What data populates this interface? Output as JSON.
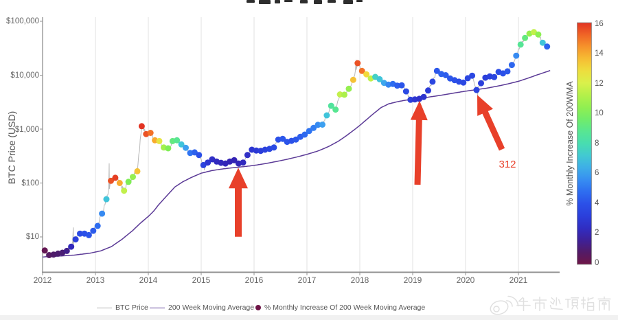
{
  "cropped_title_visible": true,
  "y_axis": {
    "label": "BTC Price (USD)",
    "ticks": [
      "$10",
      "$100",
      "$1,000",
      "$10,000",
      "$100,000"
    ],
    "tick_values": [
      10,
      100,
      1000,
      10000,
      100000
    ]
  },
  "x_axis": {
    "ticks": [
      "2012",
      "2013",
      "2014",
      "2015",
      "2016",
      "2017",
      "2018",
      "2019",
      "2020",
      "2021"
    ]
  },
  "colorbar": {
    "label": "% Monthly Increase Of 200WMA",
    "min": 0,
    "max": 16,
    "ticks": [
      "0",
      "2",
      "4",
      "6",
      "8",
      "10",
      "12",
      "14",
      "16"
    ]
  },
  "legend": {
    "items": [
      {
        "label": "BTC Price",
        "swatch": "line",
        "color": "#b0b0b0"
      },
      {
        "label": "200 Week Moving Average",
        "swatch": "line",
        "color": "#5b3a96"
      },
      {
        "label": "% Monthly Increase Of 200 Week Moving Average",
        "swatch": "dot",
        "color": "#6e1547"
      }
    ]
  },
  "annotations": {
    "arrow_label": "312",
    "arrow_color": "#e8402a",
    "arrows": [
      {
        "tip": [
          2015.701,
          192
        ],
        "tail": [
          2015.701,
          10.1
        ],
        "shaft": 10,
        "head_len": 30,
        "head_w": 28
      },
      {
        "tip": [
          2019.13,
          3350
        ],
        "tail": [
          2019.091,
          93
        ],
        "shaft": 9,
        "head_len": 28,
        "head_w": 25
      },
      {
        "tip": [
          2020.221,
          4300
        ],
        "tail": [
          2020.688,
          420
        ],
        "shaft": 9,
        "head_len": 28,
        "head_w": 25
      }
    ]
  },
  "watermark": {
    "text": "牛市逃顶指南",
    "icon": "weibo-logo"
  },
  "chart_data": {
    "type": "scatter",
    "yscale": "log",
    "xlim": [
      2012.0,
      2021.78
    ],
    "ylim": [
      3.5,
      120000
    ],
    "ylabel": "BTC Price (USD)",
    "xlabel": "",
    "series_note": "monthly BTC price dots (mid-month) colored by monthly % increase of 200-week moving average",
    "x_start": 2012.0,
    "x_step": 0.0833333,
    "dot_offset": 0.0416667,
    "monthly_price": [
      5.6,
      4.6,
      4.7,
      4.9,
      5.1,
      5.5,
      6.6,
      9.0,
      11.5,
      11.5,
      10.8,
      13.0,
      16,
      27,
      50,
      110,
      125,
      100,
      72,
      105,
      130,
      165,
      1130,
      810,
      850,
      620,
      600,
      455,
      440,
      600,
      620,
      520,
      450,
      360,
      370,
      330,
      215,
      240,
      275,
      250,
      237,
      230,
      250,
      265,
      230,
      240,
      330,
      415,
      400,
      395,
      415,
      430,
      455,
      640,
      660,
      580,
      605,
      640,
      720,
      790,
      920,
      1050,
      1200,
      1210,
      1800,
      2700,
      2300,
      4400,
      4350,
      5600,
      8200,
      16700,
      12000,
      10400,
      8700,
      9300,
      8400,
      7200,
      6700,
      6900,
      6400,
      6500,
      5000,
      3500,
      3550,
      3650,
      3950,
      5200,
      7600,
      12000,
      10500,
      10000,
      8700,
      8100,
      7600,
      7300,
      8800,
      9800,
      5300,
      7100,
      9000,
      9500,
      9200,
      11500,
      10800,
      11800,
      15500,
      23000,
      37000,
      49000,
      59000,
      63000,
      57000,
      40000,
      34000
    ],
    "monthly_wma_pct": [
      0.3,
      0.7,
      0.9,
      1.0,
      1.1,
      1.4,
      2.2,
      3.2,
      3.8,
      4.0,
      4.1,
      4.3,
      4.8,
      5.5,
      7.0,
      15.5,
      15.8,
      14.0,
      11.5,
      10.0,
      10.5,
      13.5,
      16.0,
      15.5,
      15.0,
      14.0,
      12.5,
      10.8,
      10.0,
      9.2,
      8.8,
      7.0,
      6.0,
      5.0,
      4.5,
      4.0,
      3.4,
      2.8,
      2.5,
      2.3,
      2.2,
      2.1,
      2.0,
      2.0,
      2.1,
      2.3,
      2.5,
      2.8,
      2.9,
      3.1,
      3.3,
      3.5,
      3.7,
      4.0,
      4.2,
      4.1,
      4.0,
      4.2,
      4.4,
      4.7,
      5.0,
      5.2,
      5.5,
      6.0,
      7.0,
      8.5,
      8.8,
      11.5,
      11.0,
      10.5,
      13.5,
      15.5,
      15.0,
      13.0,
      11.5,
      7.5,
      7.0,
      6.2,
      5.4,
      4.8,
      4.4,
      4.1,
      3.7,
      3.2,
      2.8,
      2.6,
      2.7,
      3.0,
      3.5,
      4.2,
      4.5,
      4.4,
      4.2,
      4.0,
      3.8,
      3.6,
      3.5,
      3.6,
      3.4,
      3.2,
      3.2,
      3.3,
      3.5,
      3.8,
      4.0,
      4.2,
      4.6,
      5.5,
      8.7,
      9.2,
      10.5,
      11.5,
      10.3,
      7.0,
      4.5
    ],
    "wma_line": [
      [
        2012.0,
        4.25
      ],
      [
        2012.3,
        4.4
      ],
      [
        2012.6,
        4.6
      ],
      [
        2012.9,
        5.0
      ],
      [
        2013.1,
        5.5
      ],
      [
        2013.3,
        6.6
      ],
      [
        2013.5,
        9.0
      ],
      [
        2013.7,
        13
      ],
      [
        2013.85,
        18
      ],
      [
        2014.0,
        24
      ],
      [
        2014.1,
        30
      ],
      [
        2014.2,
        40
      ],
      [
        2014.35,
        58
      ],
      [
        2014.5,
        84
      ],
      [
        2014.65,
        105
      ],
      [
        2014.8,
        125
      ],
      [
        2015.0,
        152
      ],
      [
        2015.2,
        170
      ],
      [
        2015.4,
        182
      ],
      [
        2015.6,
        192
      ],
      [
        2015.8,
        201
      ],
      [
        2016.0,
        212
      ],
      [
        2016.2,
        228
      ],
      [
        2016.4,
        248
      ],
      [
        2016.6,
        272
      ],
      [
        2016.8,
        302
      ],
      [
        2017.0,
        340
      ],
      [
        2017.2,
        390
      ],
      [
        2017.4,
        470
      ],
      [
        2017.6,
        600
      ],
      [
        2017.75,
        760
      ],
      [
        2017.9,
        980
      ],
      [
        2018.0,
        1170
      ],
      [
        2018.1,
        1420
      ],
      [
        2018.25,
        1900
      ],
      [
        2018.4,
        2500
      ],
      [
        2018.55,
        2950
      ],
      [
        2018.7,
        3200
      ],
      [
        2018.85,
        3420
      ],
      [
        2019.0,
        3580
      ],
      [
        2019.2,
        3800
      ],
      [
        2019.4,
        4050
      ],
      [
        2019.6,
        4350
      ],
      [
        2019.8,
        4700
      ],
      [
        2020.0,
        5050
      ],
      [
        2020.2,
        5400
      ],
      [
        2020.4,
        5750
      ],
      [
        2020.6,
        6250
      ],
      [
        2020.8,
        6900
      ],
      [
        2021.0,
        7700
      ],
      [
        2021.15,
        8600
      ],
      [
        2021.3,
        9700
      ],
      [
        2021.45,
        10900
      ],
      [
        2021.6,
        12200
      ]
    ],
    "price_line_spikes": [
      [
        2012.0,
        6.4
      ],
      [
        2012.58,
        15
      ],
      [
        2013.26,
        233
      ],
      [
        2013.91,
        1150
      ],
      [
        2014.07,
        950
      ],
      [
        2015.06,
        172
      ],
      [
        2017.93,
        19400
      ],
      [
        2019.5,
        13300
      ],
      [
        2020.23,
        4200
      ],
      [
        2021.32,
        64500
      ],
      [
        2021.58,
        32500
      ]
    ],
    "colormap_stops": [
      [
        0,
        "#6e1547"
      ],
      [
        1,
        "#4c1d6e"
      ],
      [
        2,
        "#3423b4"
      ],
      [
        3,
        "#2b3bd8"
      ],
      [
        4,
        "#2b50e8"
      ],
      [
        5,
        "#2f74f2"
      ],
      [
        6,
        "#3da0f0"
      ],
      [
        7,
        "#40c4da"
      ],
      [
        8,
        "#48ddb0"
      ],
      [
        9,
        "#5ce88a"
      ],
      [
        10,
        "#7fee55"
      ],
      [
        11,
        "#abf04a"
      ],
      [
        12,
        "#d9f04b"
      ],
      [
        13,
        "#f2d93b"
      ],
      [
        14,
        "#f8ab2e"
      ],
      [
        15,
        "#f37127"
      ],
      [
        16,
        "#e23322"
      ]
    ]
  }
}
